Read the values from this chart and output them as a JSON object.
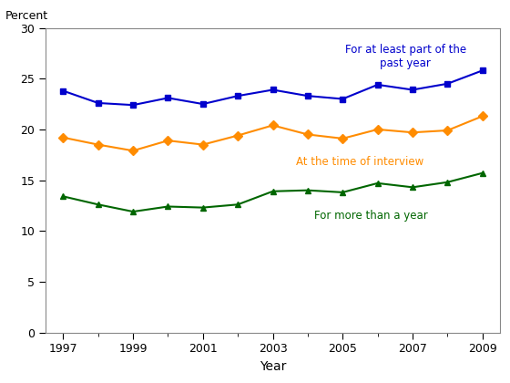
{
  "years": [
    1997,
    1998,
    1999,
    2000,
    2001,
    2002,
    2003,
    2004,
    2005,
    2006,
    2007,
    2008,
    2009
  ],
  "blue_series": {
    "label": "For at least part of the\npast year",
    "values": [
      23.8,
      22.6,
      22.4,
      23.1,
      22.5,
      23.3,
      23.9,
      23.3,
      23.0,
      24.4,
      23.9,
      24.5,
      25.8
    ],
    "color": "#0000cc",
    "marker": "s",
    "markersize": 5,
    "ann_x": 2006.8,
    "ann_y": 27.2,
    "ann_ha": "center"
  },
  "orange_series": {
    "label": "At the time of interview",
    "values": [
      19.2,
      18.5,
      17.9,
      18.9,
      18.5,
      19.4,
      20.4,
      19.5,
      19.1,
      20.0,
      19.7,
      19.9,
      21.3
    ],
    "color": "#ff8c00",
    "marker": "D",
    "markersize": 5,
    "ann_x": 2005.5,
    "ann_y": 16.8,
    "ann_ha": "center"
  },
  "green_series": {
    "label": "For more than a year",
    "values": [
      13.4,
      12.6,
      11.9,
      12.4,
      12.3,
      12.6,
      13.9,
      14.0,
      13.8,
      14.7,
      14.3,
      14.8,
      15.7
    ],
    "color": "#006600",
    "marker": "^",
    "markersize": 5,
    "ann_x": 2005.8,
    "ann_y": 11.5,
    "ann_ha": "center"
  },
  "xlabel": "Year",
  "ylabel": "Percent",
  "ylim": [
    0,
    30
  ],
  "yticks": [
    0,
    5,
    10,
    15,
    20,
    25,
    30
  ],
  "xticks": [
    1997,
    1999,
    2001,
    2003,
    2005,
    2007,
    2009
  ],
  "xlim": [
    1996.5,
    2009.5
  ],
  "annotation_fontsize": 8.5,
  "tick_fontsize": 9,
  "ylabel_fontsize": 9,
  "xlabel_fontsize": 10,
  "background_color": "#ffffff"
}
